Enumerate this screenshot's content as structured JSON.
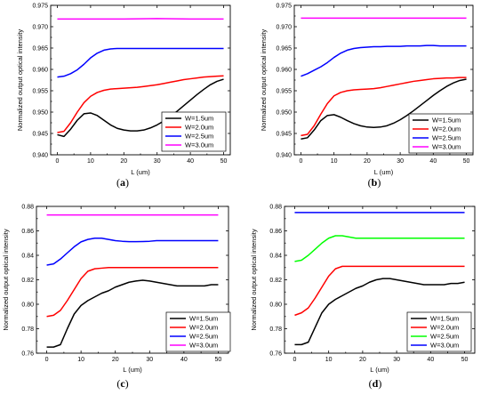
{
  "chart_data": [
    {
      "id": "a",
      "type": "line",
      "caption": "a",
      "xlabel": "L (um)",
      "ylabel": "Normalized output optical intensity",
      "xlim": [
        -2,
        52
      ],
      "ylim": [
        0.94,
        0.975
      ],
      "xticks": [
        0,
        10,
        20,
        30,
        40,
        50
      ],
      "yticks": [
        0.94,
        0.945,
        0.95,
        0.955,
        0.96,
        0.965,
        0.97,
        0.975
      ],
      "ytick_decimals": 3,
      "grid": false,
      "legend": "bottom-right",
      "series": [
        {
          "name": "W=1.5um",
          "color": "#000000",
          "x": [
            0,
            2,
            4,
            6,
            8,
            10,
            12,
            14,
            16,
            18,
            20,
            22,
            24,
            26,
            28,
            30,
            32,
            34,
            36,
            38,
            40,
            42,
            44,
            46,
            48,
            50
          ],
          "y": [
            0.9447,
            0.9443,
            0.946,
            0.9481,
            0.9496,
            0.9498,
            0.9492,
            0.9481,
            0.947,
            0.9462,
            0.9458,
            0.9456,
            0.9456,
            0.9458,
            0.9463,
            0.947,
            0.9479,
            0.949,
            0.9502,
            0.9515,
            0.9528,
            0.9541,
            0.9553,
            0.9564,
            0.9572,
            0.9577
          ]
        },
        {
          "name": "W=2.0um",
          "color": "#ff0000",
          "x": [
            0,
            2,
            4,
            6,
            8,
            10,
            12,
            14,
            16,
            18,
            20,
            22,
            24,
            26,
            28,
            30,
            32,
            34,
            36,
            38,
            40,
            42,
            44,
            46,
            48,
            50
          ],
          "y": [
            0.9452,
            0.9455,
            0.9475,
            0.95,
            0.9522,
            0.9537,
            0.9546,
            0.9551,
            0.9554,
            0.9555,
            0.9556,
            0.9557,
            0.9558,
            0.956,
            0.9562,
            0.9564,
            0.9567,
            0.957,
            0.9573,
            0.9576,
            0.9578,
            0.958,
            0.9582,
            0.9583,
            0.9584,
            0.9585
          ]
        },
        {
          "name": "W=2.5um",
          "color": "#0000ff",
          "x": [
            0,
            2,
            4,
            6,
            8,
            10,
            12,
            14,
            16,
            18,
            20,
            22,
            24,
            26,
            28,
            30,
            32,
            34,
            36,
            38,
            40,
            42,
            44,
            46,
            48,
            50
          ],
          "y": [
            0.9582,
            0.9584,
            0.959,
            0.9599,
            0.9612,
            0.9627,
            0.9638,
            0.9645,
            0.9648,
            0.9649,
            0.9649,
            0.9649,
            0.9649,
            0.9649,
            0.9649,
            0.9649,
            0.9649,
            0.9649,
            0.9649,
            0.9649,
            0.9649,
            0.9649,
            0.9649,
            0.9649,
            0.9649,
            0.9649
          ]
        },
        {
          "name": "W=3.0um",
          "color": "#ff00ff",
          "x": [
            0,
            10,
            20,
            30,
            40,
            50
          ],
          "y": [
            0.9718,
            0.9718,
            0.9718,
            0.9719,
            0.9718,
            0.9718
          ]
        }
      ]
    },
    {
      "id": "b",
      "type": "line",
      "caption": "b",
      "xlabel": "L (um)",
      "ylabel": "Normalized output optical intensity",
      "xlim": [
        -2,
        52
      ],
      "ylim": [
        0.94,
        0.975
      ],
      "xticks": [
        0,
        10,
        20,
        30,
        40,
        50
      ],
      "yticks": [
        0.94,
        0.945,
        0.95,
        0.955,
        0.96,
        0.965,
        0.97,
        0.975
      ],
      "ytick_decimals": 3,
      "grid": false,
      "legend": "bottom-right",
      "series": [
        {
          "name": "W=1.5um",
          "color": "#000000",
          "x": [
            0,
            2,
            4,
            6,
            8,
            10,
            12,
            14,
            16,
            18,
            20,
            22,
            24,
            26,
            28,
            30,
            32,
            34,
            36,
            38,
            40,
            42,
            44,
            46,
            48,
            50
          ],
          "y": [
            0.9437,
            0.944,
            0.9458,
            0.948,
            0.9492,
            0.9494,
            0.9488,
            0.948,
            0.9473,
            0.9468,
            0.9465,
            0.9464,
            0.9465,
            0.9468,
            0.9474,
            0.9482,
            0.9492,
            0.9503,
            0.9515,
            0.9527,
            0.9539,
            0.955,
            0.956,
            0.9568,
            0.9574,
            0.9577
          ]
        },
        {
          "name": "W=2.0um",
          "color": "#ff0000",
          "x": [
            0,
            2,
            4,
            6,
            8,
            10,
            12,
            14,
            16,
            18,
            20,
            22,
            24,
            26,
            28,
            30,
            32,
            34,
            36,
            38,
            40,
            42,
            44,
            46,
            48,
            50
          ],
          "y": [
            0.9445,
            0.9448,
            0.9468,
            0.9495,
            0.952,
            0.9538,
            0.9546,
            0.955,
            0.9552,
            0.9553,
            0.9554,
            0.9555,
            0.9557,
            0.956,
            0.9563,
            0.9566,
            0.9569,
            0.9572,
            0.9574,
            0.9576,
            0.9578,
            0.9579,
            0.958,
            0.958,
            0.9581,
            0.9581
          ]
        },
        {
          "name": "W=2.5um",
          "color": "#0000ff",
          "x": [
            0,
            2,
            4,
            6,
            8,
            10,
            12,
            14,
            16,
            18,
            20,
            22,
            24,
            26,
            28,
            30,
            32,
            34,
            36,
            38,
            40,
            42,
            44,
            46,
            48,
            50
          ],
          "y": [
            0.9584,
            0.959,
            0.9598,
            0.9606,
            0.9616,
            0.9628,
            0.9638,
            0.9645,
            0.9649,
            0.9651,
            0.9652,
            0.9653,
            0.9653,
            0.9654,
            0.9654,
            0.9654,
            0.9655,
            0.9655,
            0.9655,
            0.9656,
            0.9656,
            0.9655,
            0.9655,
            0.9655,
            0.9655,
            0.9655
          ]
        },
        {
          "name": "W=3.0um",
          "color": "#ff00ff",
          "x": [
            0,
            10,
            20,
            30,
            40,
            50
          ],
          "y": [
            0.972,
            0.972,
            0.972,
            0.972,
            0.972,
            0.972
          ]
        }
      ]
    },
    {
      "id": "c",
      "type": "line",
      "caption": "c",
      "xlabel": "L (um)",
      "ylabel": "Normalized output optical intensity",
      "xlim": [
        -3,
        53
      ],
      "ylim": [
        0.76,
        0.88
      ],
      "xticks": [
        0,
        10,
        20,
        30,
        40,
        50
      ],
      "yticks": [
        0.76,
        0.78,
        0.8,
        0.82,
        0.84,
        0.86,
        0.88
      ],
      "ytick_decimals": 2,
      "grid": false,
      "legend": "bottom-right",
      "series": [
        {
          "name": "W=1.5um",
          "color": "#000000",
          "x": [
            0,
            2,
            4,
            6,
            8,
            10,
            12,
            14,
            16,
            18,
            20,
            22,
            24,
            26,
            28,
            30,
            32,
            34,
            36,
            38,
            40,
            42,
            44,
            46,
            48,
            50
          ],
          "y": [
            0.765,
            0.765,
            0.767,
            0.78,
            0.792,
            0.799,
            0.803,
            0.806,
            0.809,
            0.811,
            0.814,
            0.816,
            0.818,
            0.819,
            0.8196,
            0.819,
            0.818,
            0.817,
            0.816,
            0.815,
            0.815,
            0.815,
            0.815,
            0.815,
            0.816,
            0.816
          ]
        },
        {
          "name": "W=2.0um",
          "color": "#ff0000",
          "x": [
            0,
            2,
            4,
            6,
            8,
            10,
            12,
            14,
            16,
            18,
            20,
            22,
            24,
            26,
            28,
            30,
            32,
            34,
            36,
            38,
            40,
            42,
            44,
            46,
            48,
            50
          ],
          "y": [
            0.79,
            0.791,
            0.795,
            0.803,
            0.812,
            0.821,
            0.827,
            0.829,
            0.8295,
            0.83,
            0.83,
            0.83,
            0.83,
            0.83,
            0.83,
            0.83,
            0.83,
            0.83,
            0.83,
            0.83,
            0.83,
            0.83,
            0.83,
            0.83,
            0.83,
            0.83
          ]
        },
        {
          "name": "W=2.5um",
          "color": "#0000ff",
          "x": [
            0,
            2,
            4,
            6,
            8,
            10,
            12,
            14,
            16,
            18,
            20,
            22,
            24,
            26,
            28,
            30,
            32,
            34,
            36,
            38,
            40,
            42,
            44,
            46,
            48,
            50
          ],
          "y": [
            0.832,
            0.833,
            0.837,
            0.842,
            0.847,
            0.851,
            0.853,
            0.854,
            0.854,
            0.853,
            0.852,
            0.8515,
            0.8512,
            0.8512,
            0.8513,
            0.8515,
            0.852,
            0.852,
            0.852,
            0.852,
            0.852,
            0.852,
            0.852,
            0.852,
            0.852,
            0.852
          ]
        },
        {
          "name": "W=3.0um",
          "color": "#ff00ff",
          "x": [
            0,
            10,
            20,
            30,
            40,
            50
          ],
          "y": [
            0.873,
            0.873,
            0.873,
            0.873,
            0.873,
            0.873
          ]
        }
      ]
    },
    {
      "id": "d",
      "type": "line",
      "caption": "d",
      "xlabel": "L (um)",
      "ylabel": "Normalized output optical intensity",
      "xlim": [
        -3,
        53
      ],
      "ylim": [
        0.76,
        0.88
      ],
      "xticks": [
        0,
        10,
        20,
        30,
        40,
        50
      ],
      "yticks": [
        0.76,
        0.78,
        0.8,
        0.82,
        0.84,
        0.86,
        0.88
      ],
      "ytick_decimals": 2,
      "grid": false,
      "legend": "bottom-right",
      "series": [
        {
          "name": "W=1.5um",
          "color": "#000000",
          "x": [
            0,
            2,
            4,
            6,
            8,
            10,
            12,
            14,
            16,
            18,
            20,
            22,
            24,
            26,
            28,
            30,
            32,
            34,
            36,
            38,
            40,
            42,
            44,
            46,
            48,
            50
          ],
          "y": [
            0.767,
            0.767,
            0.769,
            0.781,
            0.793,
            0.8,
            0.804,
            0.807,
            0.81,
            0.813,
            0.815,
            0.818,
            0.82,
            0.821,
            0.821,
            0.82,
            0.819,
            0.818,
            0.817,
            0.816,
            0.816,
            0.816,
            0.816,
            0.817,
            0.817,
            0.818
          ]
        },
        {
          "name": "W=2.0um",
          "color": "#ff0000",
          "x": [
            0,
            2,
            4,
            6,
            8,
            10,
            12,
            14,
            16,
            18,
            20,
            22,
            24,
            26,
            28,
            30,
            32,
            34,
            36,
            38,
            40,
            42,
            44,
            46,
            48,
            50
          ],
          "y": [
            0.791,
            0.793,
            0.797,
            0.805,
            0.814,
            0.823,
            0.829,
            0.831,
            0.831,
            0.831,
            0.831,
            0.831,
            0.831,
            0.831,
            0.831,
            0.831,
            0.831,
            0.831,
            0.831,
            0.831,
            0.831,
            0.831,
            0.831,
            0.831,
            0.831,
            0.831
          ]
        },
        {
          "name": "W=2.5um",
          "color": "#00ff00",
          "x": [
            0,
            2,
            4,
            6,
            8,
            10,
            12,
            14,
            16,
            18,
            20,
            22,
            24,
            26,
            28,
            30,
            32,
            34,
            36,
            38,
            40,
            42,
            44,
            46,
            48,
            50
          ],
          "y": [
            0.835,
            0.836,
            0.84,
            0.845,
            0.85,
            0.854,
            0.856,
            0.856,
            0.855,
            0.854,
            0.854,
            0.854,
            0.854,
            0.854,
            0.854,
            0.854,
            0.854,
            0.854,
            0.854,
            0.854,
            0.854,
            0.854,
            0.854,
            0.854,
            0.854,
            0.854
          ]
        },
        {
          "name": "W=3.0um",
          "color": "#0000ff",
          "x": [
            0,
            10,
            20,
            30,
            40,
            50
          ],
          "y": [
            0.875,
            0.875,
            0.875,
            0.875,
            0.875,
            0.875
          ]
        }
      ]
    }
  ]
}
